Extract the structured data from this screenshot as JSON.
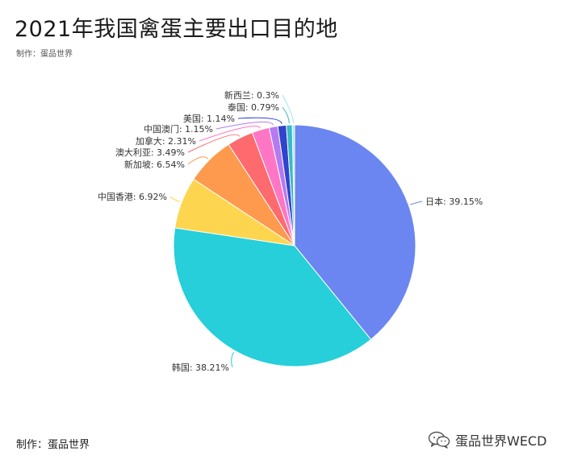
{
  "title": "2021年我国禽蛋主要出口目的地",
  "subtitle": "制作：蛋品世界",
  "footer": {
    "credit": "制作：蛋品世界",
    "brand": "蛋品世界WECD"
  },
  "chart_data": {
    "type": "pie",
    "title": "2021年我国禽蛋主要出口目的地",
    "label_format": "name: value%",
    "start_angle": "12 o'clock, clockwise",
    "slices": [
      {
        "name": "日本",
        "value": 39.15,
        "color": "#6b86f0"
      },
      {
        "name": "韩国",
        "value": 38.21,
        "color": "#26cfd9"
      },
      {
        "name": "中国香港",
        "value": 6.92,
        "color": "#fed54e"
      },
      {
        "name": "新加坡",
        "value": 6.54,
        "color": "#fe9a4d"
      },
      {
        "name": "澳大利亚",
        "value": 3.49,
        "color": "#fe6a6e"
      },
      {
        "name": "加拿大",
        "value": 2.31,
        "color": "#fe76c4"
      },
      {
        "name": "中国澳门",
        "value": 1.15,
        "color": "#b57af0"
      },
      {
        "name": "美国",
        "value": 1.14,
        "color": "#3043cc"
      },
      {
        "name": "泰国",
        "value": 0.79,
        "color": "#3cb8c9"
      },
      {
        "name": "新西兰",
        "value": 0.3,
        "color": "#9ee6ea"
      }
    ]
  }
}
